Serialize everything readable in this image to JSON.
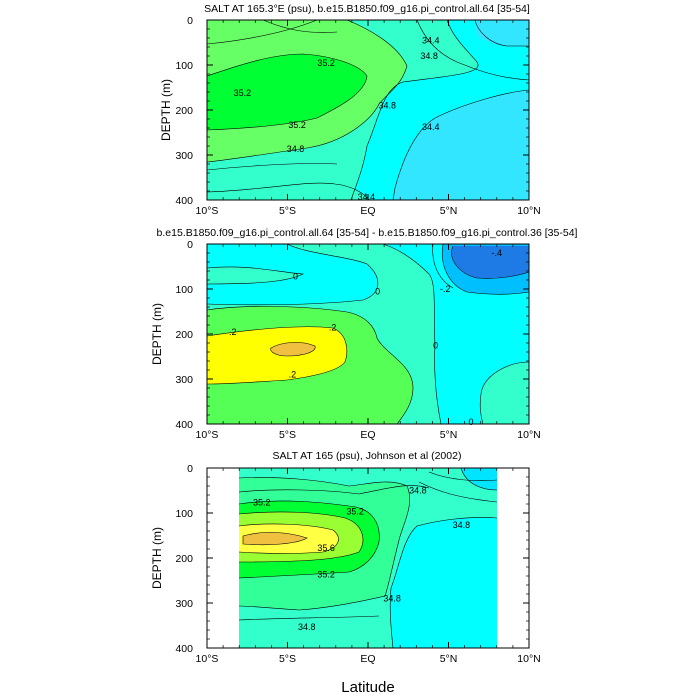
{
  "figure": {
    "xlabel": "Latitude"
  },
  "chart_data": [
    {
      "type": "contour",
      "title": "SALT AT 165.3°E (psu), b.e15.B1850.f09_g16.pi_control.all.64 [35-54]",
      "ylabel": "DEPTH (m)",
      "xlabel": "Latitude",
      "xlim": [
        -10,
        10
      ],
      "ylim": [
        400,
        0
      ],
      "x_ticks": [
        -10,
        -5,
        0,
        5,
        10
      ],
      "x_tick_labels": [
        "10°S",
        "5°S",
        "EQ",
        "5°N",
        "10°N"
      ],
      "y_ticks": [
        0,
        100,
        200,
        300,
        400
      ],
      "y_tick_labels": [
        "0",
        "100",
        "200",
        "300",
        "400"
      ],
      "contour_levels": [
        34.4,
        34.6,
        34.8,
        35.0,
        35.2
      ],
      "colors": {
        "low": "#33E6FF",
        "mid": "#00FFFF",
        "light": "#33FFCC",
        "green": "#66FF66",
        "max": "#00FF33"
      },
      "contour_labels": [
        {
          "text": "35.2",
          "lat": -2.6,
          "depth": 95
        },
        {
          "text": "35.2",
          "lat": -7.8,
          "depth": 162
        },
        {
          "text": "35.2",
          "lat": -4.4,
          "depth": 233
        },
        {
          "text": "34.8",
          "lat": -4.5,
          "depth": 287
        },
        {
          "text": "34.8",
          "lat": 1.2,
          "depth": 190
        },
        {
          "text": "34.8",
          "lat": 3.8,
          "depth": 80
        },
        {
          "text": "34.4",
          "lat": 3.9,
          "depth": 45
        },
        {
          "text": "34.4",
          "lat": 3.9,
          "depth": 238
        },
        {
          "text": "34.4",
          "lat": -0.1,
          "depth": 393
        }
      ]
    },
    {
      "type": "contour",
      "title": "b.e15.B1850.f09_g16.pi_control.all.64 [35-54] - b.e15.B1850.f09_g16.pi_control.36 [35-54]",
      "ylabel": "DEPTH (m)",
      "xlabel": "Latitude",
      "xlim": [
        -10,
        10
      ],
      "ylim": [
        400,
        0
      ],
      "x_ticks": [
        -10,
        -5,
        0,
        5,
        10
      ],
      "x_tick_labels": [
        "10°S",
        "5°S",
        "EQ",
        "5°N",
        "10°N"
      ],
      "y_ticks": [
        0,
        100,
        200,
        300,
        400
      ],
      "y_tick_labels": [
        "0",
        "100",
        "200",
        "300",
        "400"
      ],
      "contour_levels": [
        -0.4,
        -0.2,
        0,
        0.1,
        0.2,
        0.3
      ],
      "colors": {
        "neg4": "#1E7BE6",
        "neg2": "#00BFFF",
        "zero": "#00FFFF",
        "pos1": "#33FFCC",
        "pos2": "#55FF55",
        "pos3": "#FFFF00",
        "max": "#F0C040"
      },
      "contour_labels": [
        {
          "text": "0",
          "lat": -4.5,
          "depth": 72
        },
        {
          "text": "0",
          "lat": 0.6,
          "depth": 105
        },
        {
          "text": "-.2",
          "lat": 4.8,
          "depth": 100
        },
        {
          "text": "-.4",
          "lat": 8.0,
          "depth": 20
        },
        {
          "text": "0",
          "lat": 4.2,
          "depth": 225
        },
        {
          "text": "0",
          "lat": 6.4,
          "depth": 395
        },
        {
          "text": ".2",
          "lat": -8.4,
          "depth": 195
        },
        {
          "text": ".2",
          "lat": -2.2,
          "depth": 185
        },
        {
          "text": ".2",
          "lat": -4.7,
          "depth": 290
        }
      ]
    },
    {
      "type": "contour",
      "title": "SALT AT 165 (psu), Johnson et al (2002)",
      "ylabel": "DEPTH (m)",
      "xlabel": "Latitude",
      "xlim": [
        -10,
        10
      ],
      "ylim": [
        400,
        0
      ],
      "data_lat_range": [
        -8,
        8
      ],
      "x_ticks": [
        -10,
        -5,
        0,
        5,
        10
      ],
      "x_tick_labels": [
        "10°S",
        "5°S",
        "EQ",
        "5°N",
        "10°N"
      ],
      "y_ticks": [
        0,
        100,
        200,
        300,
        400
      ],
      "y_tick_labels": [
        "0",
        "100",
        "200",
        "300",
        "400"
      ],
      "contour_levels": [
        34.6,
        34.8,
        35.0,
        35.2,
        35.4,
        35.6
      ],
      "colors": {
        "base": "#00FFFF",
        "l348": "#33FFCC",
        "l350": "#33FF99",
        "l352": "#00FF33",
        "l354": "#99FF33",
        "l356": "#FFFF44",
        "max": "#F0C040"
      },
      "contour_labels": [
        {
          "text": "35.2",
          "lat": -6.6,
          "depth": 77
        },
        {
          "text": "35.2",
          "lat": -0.8,
          "depth": 97
        },
        {
          "text": "35.6",
          "lat": -2.6,
          "depth": 178
        },
        {
          "text": "35.2",
          "lat": -2.6,
          "depth": 237
        },
        {
          "text": "34.8",
          "lat": 3.1,
          "depth": 50
        },
        {
          "text": "34.8",
          "lat": 5.8,
          "depth": 127
        },
        {
          "text": "34.8",
          "lat": 1.5,
          "depth": 290
        },
        {
          "text": "34.8",
          "lat": -3.8,
          "depth": 353
        }
      ]
    }
  ]
}
